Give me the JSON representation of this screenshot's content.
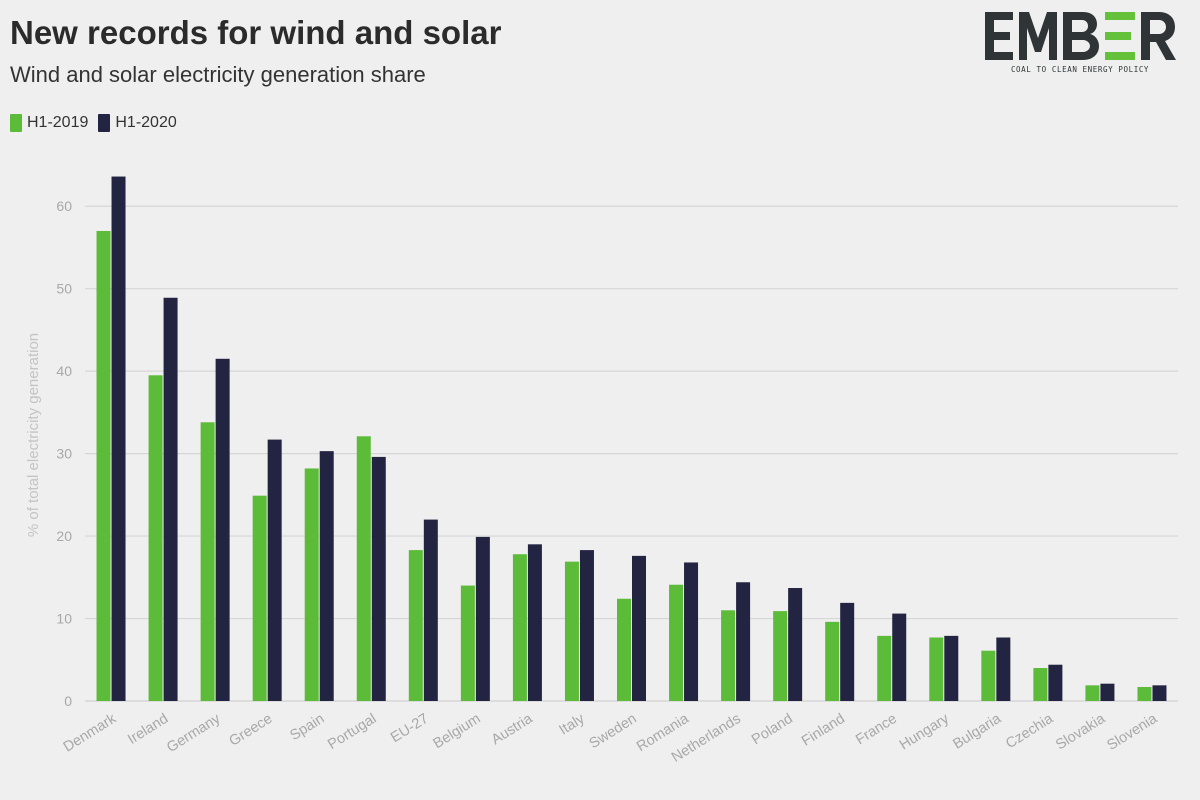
{
  "header": {
    "title": "New records for wind and solar",
    "subtitle": "Wind and solar electricity generation share"
  },
  "logo": {
    "wordmark": "EMBER",
    "tagline": "COAL TO CLEAN ENERGY POLICY",
    "accent_color": "#63c239",
    "text_color": "#2f3537"
  },
  "colors": {
    "h1_2019": "#5dbb3a",
    "h1_2020": "#232342",
    "gridline": "#d6d6d6",
    "background": "#efefef"
  },
  "chart_data": {
    "type": "bar",
    "ylabel": "% of total electricity generation",
    "ylim": [
      0,
      65
    ],
    "yticks": [
      0,
      10,
      20,
      30,
      40,
      50,
      60
    ],
    "grid": true,
    "legend_position": "top-left",
    "categories": [
      "Denmark",
      "Ireland",
      "Germany",
      "Greece",
      "Spain",
      "Portugal",
      "EU-27",
      "Belgium",
      "Austria",
      "Italy",
      "Sweden",
      "Romania",
      "Netherlands",
      "Poland",
      "Finland",
      "France",
      "Hungary",
      "Bulgaria",
      "Czechia",
      "Slovakia",
      "Slovenia"
    ],
    "series": [
      {
        "name": "H1-2019",
        "values": [
          57.0,
          39.5,
          33.8,
          24.9,
          28.2,
          32.1,
          18.3,
          14.0,
          17.8,
          16.9,
          12.4,
          14.1,
          11.0,
          10.9,
          9.6,
          7.9,
          7.7,
          6.1,
          4.0,
          1.9,
          1.7
        ]
      },
      {
        "name": "H1-2020",
        "values": [
          63.6,
          48.9,
          41.5,
          31.7,
          30.3,
          29.6,
          22.0,
          19.9,
          19.0,
          18.3,
          17.6,
          16.8,
          14.4,
          13.7,
          11.9,
          10.6,
          7.9,
          7.7,
          4.4,
          2.1,
          1.9
        ]
      }
    ]
  }
}
